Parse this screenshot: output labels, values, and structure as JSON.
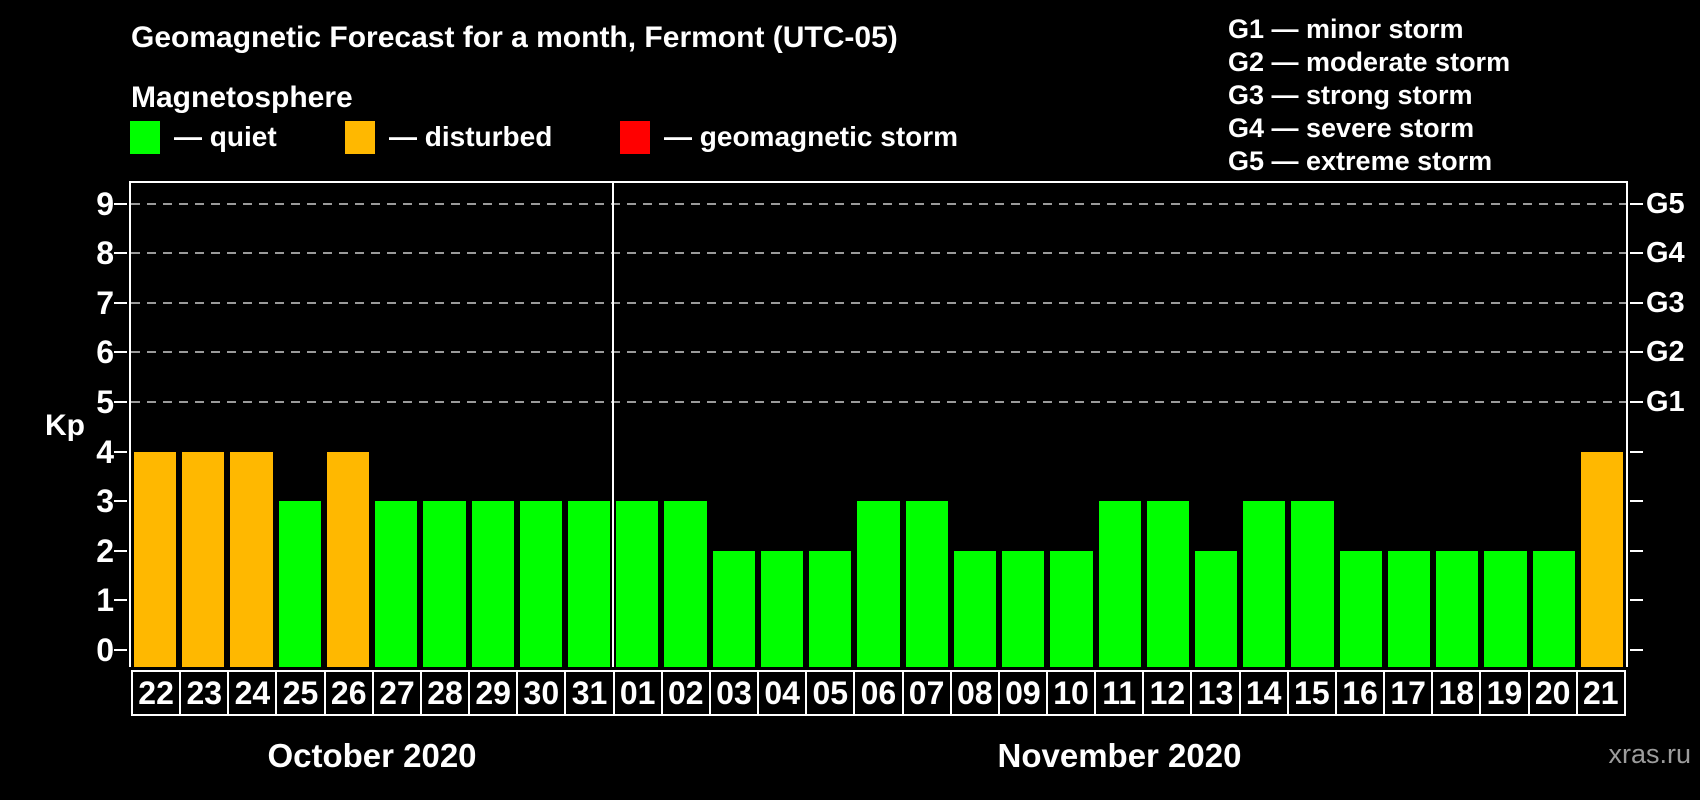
{
  "title": "Geomagnetic Forecast for a month, Fermont (UTC-05)",
  "subtitle": "Magnetosphere",
  "legend": {
    "items": [
      {
        "key": "quiet",
        "label": "— quiet"
      },
      {
        "key": "disturbed",
        "label": "— disturbed"
      },
      {
        "key": "storm",
        "label": "— geomagnetic storm"
      }
    ]
  },
  "storm_scale": [
    {
      "text": "G1 — minor storm"
    },
    {
      "text": "G2 — moderate storm"
    },
    {
      "text": "G3 — strong storm"
    },
    {
      "text": "G4 — severe storm"
    },
    {
      "text": "G5 — extreme storm"
    }
  ],
  "watermark": "xras.ru",
  "colors": {
    "quiet": "#00ff00",
    "disturbed": "#ffb800",
    "storm": "#ff0000",
    "axis": "#ffffff",
    "grid": "#9a9a9a",
    "background": "#000000"
  },
  "chart_data": {
    "type": "bar",
    "ylabel": "Kp",
    "ylim": [
      0,
      9
    ],
    "yticks": [
      0,
      1,
      2,
      3,
      4,
      5,
      6,
      7,
      8,
      9
    ],
    "gridline_kp": [
      5,
      6,
      7,
      8,
      9
    ],
    "grid": "dashed horizontal at Kp 5-9",
    "right_axis": [
      {
        "kp": 5,
        "label": "G1"
      },
      {
        "kp": 6,
        "label": "G2"
      },
      {
        "kp": 7,
        "label": "G3"
      },
      {
        "kp": 8,
        "label": "G4"
      },
      {
        "kp": 9,
        "label": "G5"
      }
    ],
    "months": [
      {
        "label": "October 2020",
        "count": 10
      },
      {
        "label": "November 2020",
        "count": 21
      }
    ],
    "categories": [
      "22",
      "23",
      "24",
      "25",
      "26",
      "27",
      "28",
      "29",
      "30",
      "31",
      "01",
      "02",
      "03",
      "04",
      "05",
      "06",
      "07",
      "08",
      "09",
      "10",
      "11",
      "12",
      "13",
      "14",
      "15",
      "16",
      "17",
      "18",
      "19",
      "20",
      "21"
    ],
    "series": [
      {
        "name": "Kp forecast",
        "values": [
          4,
          4,
          4,
          3,
          4,
          3,
          3,
          3,
          3,
          3,
          3,
          3,
          2,
          2,
          2,
          3,
          3,
          2,
          2,
          2,
          3,
          3,
          2,
          3,
          3,
          2,
          2,
          2,
          2,
          2,
          4
        ],
        "statuses": [
          "disturbed",
          "disturbed",
          "disturbed",
          "quiet",
          "disturbed",
          "quiet",
          "quiet",
          "quiet",
          "quiet",
          "quiet",
          "quiet",
          "quiet",
          "quiet",
          "quiet",
          "quiet",
          "quiet",
          "quiet",
          "quiet",
          "quiet",
          "quiet",
          "quiet",
          "quiet",
          "quiet",
          "quiet",
          "quiet",
          "quiet",
          "quiet",
          "quiet",
          "quiet",
          "quiet",
          "disturbed"
        ]
      }
    ]
  }
}
